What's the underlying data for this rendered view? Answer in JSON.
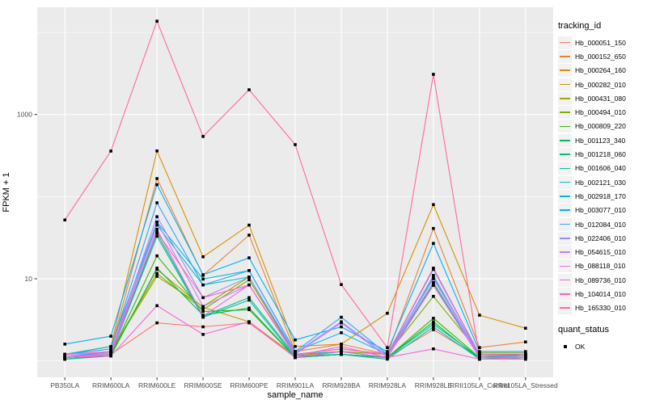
{
  "chart_data": {
    "type": "line",
    "title": "",
    "xlabel": "sample_name",
    "ylabel": "FPKM + 1",
    "y_scale": "log10",
    "grid": true,
    "panel_bg": "#EBEBEB",
    "grid_color": "#FFFFFF",
    "tick_text_color": "#4D4D4D",
    "point_color": "#000000",
    "point_shape": "square",
    "y_major_ticks": [
      {
        "label": "1000",
        "value": 1000
      },
      {
        "label": "10",
        "value": 10
      }
    ],
    "y_minor_gridlines": [
      10000,
      100,
      1
    ],
    "ylim": [
      1,
      15000
    ],
    "categories": [
      "PB350LA",
      "RRIM600LA",
      "RRIM600LE",
      "RRIM600SE",
      "RRIM600PE",
      "RRIM901LA",
      "RRIM928BA",
      "RRIM928LA",
      "RRIM928LE",
      "RRII105LA_Control",
      "RRII105LA_Stressed"
    ],
    "series": [
      {
        "name": "Hb_000051_150",
        "color": "#F8766D",
        "values": [
          1.1,
          1.2,
          2.9,
          2.6,
          2.9,
          1.1,
          1.2,
          1.1,
          2.4,
          1.1,
          1.1
        ]
      },
      {
        "name": "Hb_000152_650",
        "color": "#EA8331",
        "values": [
          1.2,
          1.4,
          166,
          11,
          34,
          1.3,
          1.6,
          1.2,
          41,
          1.45,
          1.7
        ]
      },
      {
        "name": "Hb_000264_160",
        "color": "#D89000",
        "values": [
          1.2,
          1.5,
          360,
          18.5,
          45,
          1.5,
          1.6,
          3.8,
          80,
          3.6,
          2.5
        ]
      },
      {
        "name": "Hb_000282_010",
        "color": "#C09B00",
        "values": [
          1.1,
          1.2,
          13,
          4.5,
          3,
          1.15,
          1.3,
          1.1,
          9,
          1.1,
          1.2
        ]
      },
      {
        "name": "Hb_000431_080",
        "color": "#A3A500",
        "values": [
          1.1,
          1.3,
          10.7,
          4.6,
          10.5,
          1.2,
          1.4,
          1.2,
          8.5,
          1.15,
          1.2
        ]
      },
      {
        "name": "Hb_000494_010",
        "color": "#7CAE00",
        "values": [
          1.1,
          1.3,
          11.6,
          4.2,
          9.7,
          1.2,
          1.3,
          1.2,
          6.1,
          1.25,
          1.25
        ]
      },
      {
        "name": "Hb_000809_220",
        "color": "#39B600",
        "values": [
          1.05,
          1.2,
          19,
          4,
          4.2,
          1.1,
          1.2,
          1.1,
          3.3,
          1.1,
          1.2
        ]
      },
      {
        "name": "Hb_001123_340",
        "color": "#00BB4E",
        "values": [
          1.05,
          1.15,
          13.5,
          3.6,
          4.4,
          1.1,
          1.2,
          1.1,
          3,
          1.05,
          1.1
        ]
      },
      {
        "name": "Hb_001218_060",
        "color": "#00BF7D",
        "values": [
          1.05,
          1.2,
          36,
          3.5,
          5.9,
          1.15,
          1.2,
          1.1,
          2.8,
          1.1,
          1.1
        ]
      },
      {
        "name": "Hb_001606_040",
        "color": "#00C1A3",
        "values": [
          1.05,
          1.2,
          33,
          3.4,
          5.5,
          1.1,
          1.2,
          1.05,
          2.6,
          1.05,
          1.1
        ]
      },
      {
        "name": "Hb_002121_030",
        "color": "#00BFC4",
        "values": [
          1.1,
          1.3,
          45,
          8.4,
          10.5,
          1.2,
          1.3,
          1.1,
          8.9,
          1.1,
          1.15
        ]
      },
      {
        "name": "Hb_002918_170",
        "color": "#00BAE0",
        "values": [
          1.2,
          1.5,
          49,
          9.9,
          12.6,
          1.3,
          2.2,
          1.2,
          10.5,
          1.2,
          1.2
        ]
      },
      {
        "name": "Hb_003077_010",
        "color": "#00B0F6",
        "values": [
          1.6,
          2,
          140,
          11.2,
          18,
          1.8,
          2.6,
          1.3,
          27,
          1.3,
          1.3
        ]
      },
      {
        "name": "Hb_012084_010",
        "color": "#35A2FF",
        "values": [
          1.2,
          1.4,
          84,
          8.4,
          12.6,
          1.3,
          3.4,
          1.2,
          13,
          1.2,
          1.2
        ]
      },
      {
        "name": "Hb_022406_010",
        "color": "#9590FF",
        "values": [
          1.15,
          1.3,
          57,
          5.9,
          10.5,
          1.25,
          3,
          1.15,
          11,
          1.15,
          1.15
        ]
      },
      {
        "name": "Hb_054615_010",
        "color": "#C77CFF",
        "values": [
          1.1,
          1.25,
          49,
          4.6,
          8.4,
          1.2,
          2.9,
          1.1,
          10,
          1.1,
          1.1
        ]
      },
      {
        "name": "Hb_088118_010",
        "color": "#E76BF3",
        "values": [
          1.1,
          1.2,
          40,
          3.5,
          8.4,
          1.15,
          1.5,
          1.1,
          8.3,
          1.1,
          1.1
        ]
      },
      {
        "name": "Hb_089736_010",
        "color": "#FA62DB",
        "values": [
          1.1,
          1.15,
          4.7,
          2.1,
          3,
          1.1,
          1.3,
          1.1,
          1.4,
          1.05,
          1.05
        ]
      },
      {
        "name": "Hb_104014_010",
        "color": "#FF62BC",
        "values": [
          1.2,
          1.3,
          37,
          5.9,
          8.4,
          1.2,
          1.4,
          1.2,
          13.5,
          1.2,
          1.2
        ]
      },
      {
        "name": "Hb_165330_010",
        "color": "#FF6A98",
        "values": [
          52,
          358,
          13700,
          540,
          2000,
          430,
          8.5,
          1.45,
          3080,
          1.1,
          1.05
        ]
      }
    ],
    "legend": {
      "series_title": "tracking_id",
      "point_title": "quant_status",
      "point_label": "OK"
    }
  }
}
